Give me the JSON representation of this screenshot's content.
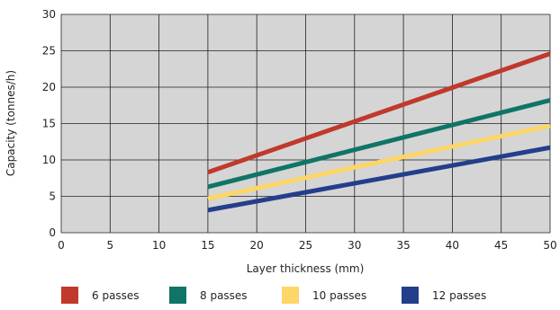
{
  "chart_data": {
    "type": "line",
    "title": "",
    "xlabel": "Layer thickness (mm)",
    "ylabel": "Capacity (tonnes/h)",
    "xlim": [
      0,
      50
    ],
    "ylim": [
      0,
      30
    ],
    "x_ticks": [
      "0",
      "5",
      "10",
      "15",
      "20",
      "25",
      "30",
      "35",
      "40",
      "45",
      "50"
    ],
    "y_ticks": [
      "0",
      "5",
      "10",
      "15",
      "20",
      "25",
      "30"
    ],
    "grid": true,
    "legend_position": "bottom",
    "plot_background": "#d5d5d5",
    "series": [
      {
        "name": "6 passes",
        "color": "#c0392b",
        "x": [
          15,
          50
        ],
        "y": [
          8.3,
          24.6
        ]
      },
      {
        "name": "8 passes",
        "color": "#0f7566",
        "x": [
          15,
          50
        ],
        "y": [
          6.3,
          18.2
        ]
      },
      {
        "name": "10 passes",
        "color": "#fcd666",
        "x": [
          15,
          50
        ],
        "y": [
          4.7,
          14.7
        ]
      },
      {
        "name": "12 passes",
        "color": "#233e8b",
        "x": [
          15,
          50
        ],
        "y": [
          3.1,
          11.7
        ]
      }
    ]
  }
}
